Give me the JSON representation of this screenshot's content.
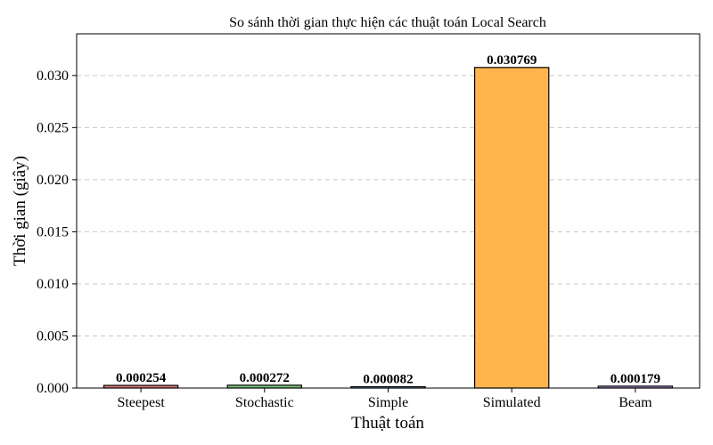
{
  "chart_data": {
    "type": "bar",
    "title": "So sánh thời gian thực hiện các thuật toán Local Search",
    "xlabel": "Thuật toán",
    "ylabel": "Thời gian (giây)",
    "categories": [
      "Steepest",
      "Stochastic",
      "Simple",
      "Simulated",
      "Beam"
    ],
    "values": [
      0.000254,
      0.000272,
      8.2e-05,
      0.030769,
      0.000179
    ],
    "value_labels": [
      "0.000254",
      "0.000272",
      "0.000082",
      "0.030769",
      "0.000179"
    ],
    "colors": [
      "#e07b74",
      "#77c778",
      "#7cb5ec",
      "#ffb54d",
      "#b797d6"
    ],
    "ylim": [
      0,
      0.034
    ],
    "yticks": [
      0,
      0.005,
      0.01,
      0.015,
      0.02,
      0.025,
      0.03
    ],
    "ytick_labels": [
      "0.000",
      "0.005",
      "0.010",
      "0.015",
      "0.020",
      "0.025",
      "0.030"
    ],
    "grid": "y-dashed"
  }
}
